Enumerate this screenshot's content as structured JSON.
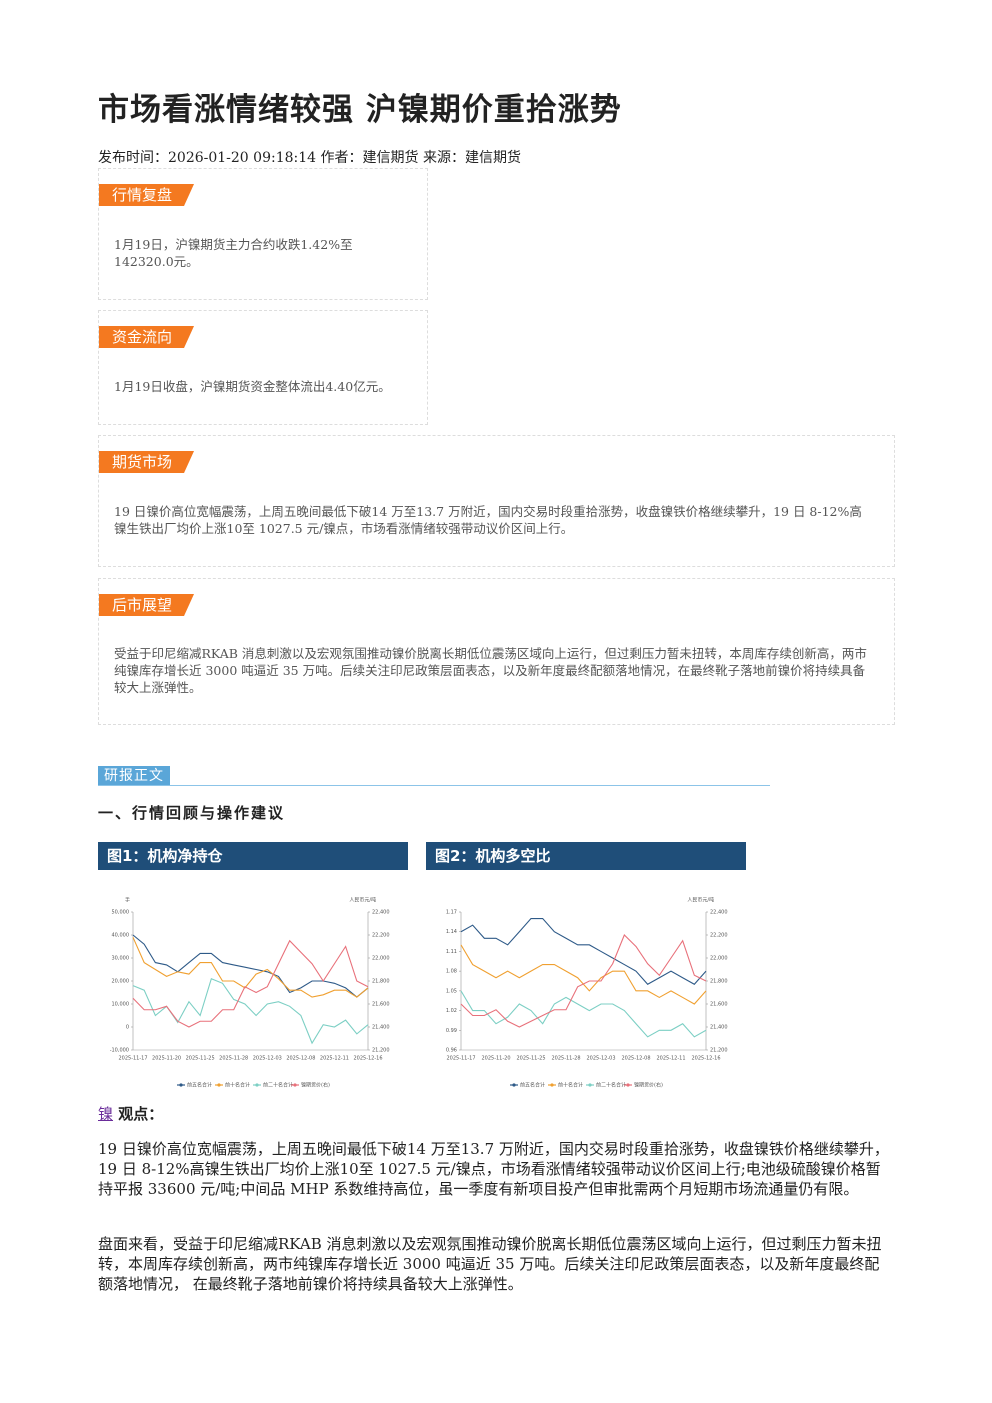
{
  "header": {
    "title": "市场看涨情绪较强 沪镍期价重拾涨势",
    "meta": "发布时间：2026-01-20 09:18:14 作者：建信期货 来源：建信期货"
  },
  "sections": [
    {
      "label": "行情复盘",
      "body": "1月19日，沪镍期货主力合约收跌1.42%至142320.0元。"
    },
    {
      "label": "资金流向",
      "body": "1月19日收盘，沪镍期货资金整体流出4.40亿元。"
    },
    {
      "label": "期货市场",
      "body": "19 日镍价高位宽幅震荡，上周五晚间最低下破14 万至13.7 万附近，国内交易时段重拾涨势，收盘镍铁价格继续攀升，19 日 8-12%高镍生铁出厂均价上涨10至 1027.5 元/镍点，市场看涨情绪较强带动议价区间上行。"
    },
    {
      "label": "后市展望",
      "body": "受益于印尼缩减RKAB 消息刺激以及宏观氛围推动镍价脱离长期低位震荡区域向上运行，但过剩压力暂未扭转，本周库存续创新高，两市纯镍库存增长近 3000 吨逼近 35 万吨。后续关注印尼政策层面表态，以及新年度最终配额落地情况，在最终靴子落地前镍价将持续具备较大上涨弹性。"
    }
  ],
  "report": {
    "label": "研报正文",
    "heading": "一、行情回顾与操作建议",
    "keyword": "镍",
    "viewpoint": "观点：",
    "paragraphs": [
      "19 日镍价高位宽幅震荡，上周五晚间最低下破14 万至13.7 万附近，国内交易时段重拾涨势，收盘镍铁价格继续攀升，19 日 8-12%高镍生铁出厂均价上涨10至 1027.5 元/镍点，市场看涨情绪较强带动议价区间上行;电池级硫酸镍价格暂持平报 33600 元/吨;中间品 MHP 系数维持高位，虽一季度有新项目投产但审批需两个月短期市场流通量仍有限。",
      "盘面来看，受益于印尼缩减RKAB 消息刺激以及宏观氛围推动镍价脱离长期低位震荡区域向上运行，但过剩压力暂未扭转，本周库存续创新高，两市纯镍库存增长近 3000 吨逼近 35 万吨。后续关注印尼政策层面表态，以及新年度最终配额落地情况， 在最终靴子落地前镍价将持续具备较大上涨弹性。"
    ]
  },
  "chart_data": [
    {
      "type": "line",
      "title": "图1：机构净持仓",
      "ylabel": "手",
      "y2label": "人民币元/吨",
      "categories": [
        "2025-11-17",
        null,
        null,
        "2025-11-20",
        null,
        null,
        "2025-11-25",
        null,
        null,
        "2025-11-28",
        null,
        null,
        "2025-12-03",
        null,
        null,
        "2025-12-08",
        null,
        null,
        "2025-12-11",
        null,
        null,
        "2025-12-16"
      ],
      "ylim": [
        -10000,
        50000
      ],
      "yticks": [
        {
          "value": -10000,
          "label": "-10,000"
        },
        0,
        {
          "value": 10000,
          "label": "10,000"
        },
        {
          "value": 20000,
          "label": "20,000"
        },
        {
          "value": 30000,
          "label": "30,000"
        },
        {
          "value": 40000,
          "label": "40,000"
        },
        {
          "value": 50000,
          "label": "50,000"
        }
      ],
      "y2lim": [
        21200,
        22400
      ],
      "y2ticks": [
        {
          "value": 21200,
          "label": "21,200"
        },
        {
          "value": 21400,
          "label": "21,400"
        },
        {
          "value": 21600,
          "label": "21,600"
        },
        {
          "value": 21800,
          "label": "21,800"
        },
        {
          "value": 22000,
          "label": "22,000"
        },
        {
          "value": 22200,
          "label": "22,200"
        },
        {
          "value": 22400,
          "label": "22,400"
        }
      ],
      "series": [
        {
          "name": "前五名合计",
          "color": "#2e5a88",
          "values": [
            40000,
            36000,
            28000,
            27000,
            24000,
            28000,
            32000,
            32000,
            28000,
            27000,
            26000,
            25000,
            24000,
            22000,
            15000,
            17000,
            20000,
            20000,
            19000,
            17000,
            13000,
            17000
          ]
        },
        {
          "name": "前十名合计",
          "color": "#f0a030",
          "values": [
            39000,
            28000,
            25000,
            22000,
            24000,
            23000,
            28000,
            28000,
            20000,
            20000,
            17000,
            23000,
            25000,
            21000,
            16000,
            16000,
            13000,
            14000,
            16000,
            16000,
            13000,
            17000
          ]
        },
        {
          "name": "前二十名合计",
          "color": "#7ccfc4",
          "values": [
            18000,
            16000,
            5000,
            9000,
            2000,
            11000,
            5000,
            21000,
            19000,
            12000,
            10000,
            5000,
            10000,
            11000,
            9000,
            5000,
            -7000,
            1000,
            0,
            3000,
            -3000,
            1000
          ]
        },
        {
          "name": "镍期货价(右)",
          "color": "#e8707a",
          "axis": "y2",
          "values": [
            21650,
            21550,
            21550,
            21580,
            21450,
            21400,
            21450,
            21450,
            21550,
            21550,
            21750,
            21700,
            21750,
            21950,
            22150,
            22050,
            21950,
            21800,
            21950,
            22100,
            21800,
            21750
          ]
        }
      ]
    },
    {
      "type": "line",
      "title": "图2：机构多空比",
      "y2label": "人民币元/吨",
      "categories": [
        "2025-11-17",
        null,
        null,
        "2025-11-20",
        null,
        null,
        "2025-11-25",
        null,
        null,
        "2025-11-28",
        null,
        null,
        "2025-12-03",
        null,
        null,
        "2025-12-08",
        null,
        null,
        "2025-12-11",
        null,
        null,
        "2025-12-16"
      ],
      "ylim": [
        0.96,
        1.17
      ],
      "yticks": [
        0.96,
        0.99,
        1.02,
        1.05,
        1.08,
        1.11,
        1.14,
        1.17
      ],
      "y2lim": [
        21200,
        22400
      ],
      "y2ticks": [
        {
          "value": 21200,
          "label": "21,200"
        },
        {
          "value": 21400,
          "label": "21,400"
        },
        {
          "value": 21600,
          "label": "21,600"
        },
        {
          "value": 21800,
          "label": "21,800"
        },
        {
          "value": 22000,
          "label": "22,000"
        },
        {
          "value": 22200,
          "label": "22,200"
        },
        {
          "value": 22400,
          "label": "22,400"
        }
      ],
      "series": [
        {
          "name": "前五名合计",
          "color": "#2e5a88",
          "values": [
            1.14,
            1.15,
            1.13,
            1.13,
            1.12,
            1.14,
            1.16,
            1.16,
            1.14,
            1.13,
            1.12,
            1.12,
            1.11,
            1.1,
            1.09,
            1.08,
            1.06,
            1.07,
            1.08,
            1.07,
            1.06,
            1.08
          ]
        },
        {
          "name": "前十名合计",
          "color": "#f0a030",
          "values": [
            1.12,
            1.09,
            1.08,
            1.07,
            1.08,
            1.07,
            1.08,
            1.09,
            1.09,
            1.08,
            1.07,
            1.05,
            1.07,
            1.08,
            1.08,
            1.05,
            1.05,
            1.04,
            1.05,
            1.04,
            1.03,
            1.05
          ]
        },
        {
          "name": "前二十名合计",
          "color": "#7ccfc4",
          "values": [
            1.05,
            1.02,
            1.02,
            1.0,
            1.01,
            1.03,
            1.02,
            1.0,
            1.03,
            1.04,
            1.03,
            1.02,
            1.03,
            1.03,
            1.02,
            1.0,
            0.98,
            0.99,
            0.99,
            1.0,
            0.98,
            0.99
          ]
        },
        {
          "name": "镍期货价(右)",
          "color": "#e8707a",
          "axis": "y2",
          "values": [
            21600,
            21500,
            21500,
            21550,
            21450,
            21400,
            21450,
            21500,
            21550,
            21550,
            21750,
            21800,
            21800,
            21950,
            22200,
            22100,
            21950,
            21850,
            22000,
            22150,
            21850,
            21800
          ]
        }
      ]
    }
  ]
}
